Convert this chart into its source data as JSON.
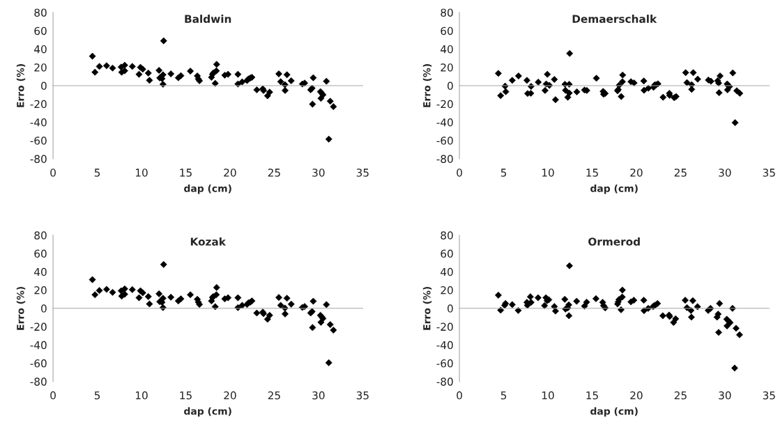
{
  "chart_data": [
    {
      "type": "scatter",
      "title": "Baldwin",
      "xlabel": "dap (cm)",
      "ylabel": "Erro (%)",
      "color": "#000000",
      "marker": "diamond",
      "xlim": [
        0,
        35
      ],
      "ylim": [
        -80,
        80
      ],
      "xticks": [
        0,
        5,
        10,
        15,
        20,
        25,
        30,
        35
      ],
      "yticks": [
        -80,
        -60,
        -40,
        -20,
        0,
        20,
        40,
        60,
        80
      ],
      "x": [
        4.45,
        4.74,
        5.24,
        6.05,
        6.73,
        7.7,
        7.76,
        8.1,
        8.1,
        8.96,
        9.72,
        9.88,
        10.14,
        10.77,
        10.9,
        11.98,
        12.06,
        12.32,
        12.43,
        12.43,
        12.5,
        13.32,
        14.16,
        14.45,
        15.52,
        16.31,
        16.42,
        16.55,
        17.91,
        18.02,
        18.12,
        18.46,
        18.49,
        18.33,
        19.41,
        19.78,
        20.9,
        20.9,
        21.38,
        21.93,
        22.09,
        22.3,
        22.48,
        23.03,
        23.71,
        23.79,
        24.24,
        24.48,
        25.52,
        25.73,
        26.21,
        26.23,
        26.44,
        26.92,
        28.18,
        28.44,
        29.12,
        29.28,
        29.33,
        29.41,
        30.22,
        30.38,
        30.51,
        30.28,
        30.9,
        31.17,
        31.33,
        31.69
      ],
      "values": [
        32.2,
        14.7,
        21.0,
        21.8,
        19.2,
        20.3,
        14.7,
        22.3,
        16.2,
        21.0,
        12.4,
        20.0,
        18.0,
        13.7,
        5.8,
        16.7,
        8.4,
        7.6,
        11.9,
        1.5,
        49,
        12.9,
        8.6,
        10.9,
        15.9,
        10.6,
        7.3,
        5.3,
        9.1,
        12.4,
        13.9,
        16.2,
        23.3,
        2.5,
        11.4,
        12.4,
        12.4,
        1.8,
        4.1,
        5.6,
        7.3,
        8.4,
        9.1,
        -4.6,
        -3.5,
        -5.3,
        -11.1,
        -7.1,
        12.9,
        4.3,
        1.0,
        -5.3,
        11.9,
        5.3,
        1.8,
        2.8,
        -4.6,
        -2.8,
        -20.3,
        8.6,
        -6.6,
        -8.4,
        -10.1,
        -13.9,
        4.8,
        -58.5,
        -17.0,
        -23.0
      ]
    },
    {
      "type": "scatter",
      "title": "Demaerschalk",
      "xlabel": "dap (cm)",
      "ylabel": "Erro (%)",
      "color": "#000000",
      "marker": "diamond",
      "xlim": [
        0,
        35
      ],
      "ylim": [
        -80,
        80
      ],
      "xticks": [
        0,
        5,
        10,
        15,
        20,
        25,
        30,
        35
      ],
      "yticks": [
        -80,
        -60,
        -40,
        -20,
        0,
        20,
        40,
        60,
        80
      ],
      "x": [
        4.4,
        4.66,
        5.16,
        5.24,
        5.97,
        6.68,
        7.63,
        7.71,
        8.07,
        8.1,
        8.91,
        9.68,
        9.81,
        9.94,
        10.17,
        10.73,
        10.86,
        11.93,
        11.99,
        12.25,
        12.41,
        12.41,
        12.46,
        13.27,
        14.14,
        14.4,
        15.48,
        16.24,
        16.29,
        16.48,
        17.87,
        17.95,
        18.05,
        18.29,
        18.42,
        18.45,
        19.39,
        19.74,
        20.84,
        20.87,
        21.36,
        21.94,
        22.07,
        22.23,
        22.44,
        23.02,
        23.73,
        23.76,
        24.28,
        24.49,
        25.57,
        25.72,
        26.25,
        26.25,
        26.43,
        26.93,
        28.14,
        28.43,
        29.19,
        29.3,
        29.35,
        29.46,
        30.27,
        30.37,
        30.3,
        30.53,
        30.9,
        31.16,
        31.35,
        31.69
      ],
      "values": [
        13.4,
        -10.9,
        -0.5,
        -6.6,
        5.8,
        10.6,
        5.8,
        -8.6,
        -8.4,
        -0.8,
        3.8,
        -5.3,
        1.8,
        12.4,
        0.3,
        6.8,
        -15.4,
        1.5,
        -5.1,
        -12.7,
        1.5,
        -8.1,
        35.2,
        -6.8,
        -4.8,
        -5.3,
        8.1,
        -6.3,
        -9.4,
        -8.6,
        -5.6,
        -4.3,
        0.3,
        -11.9,
        4.3,
        11.6,
        4.3,
        3.0,
        5.1,
        -5.1,
        -2.8,
        -1.8,
        0.8,
        1.0,
        2.0,
        -12.7,
        -8.4,
        -10.6,
        -13.2,
        -11.9,
        14.2,
        3.3,
        1.0,
        -4.1,
        14.2,
        7.1,
        6.1,
        4.8,
        5.3,
        2.8,
        -7.8,
        10.6,
        1.8,
        0.0,
        -4.6,
        -1.0,
        13.9,
        -40.5,
        -5.6,
        -8.4
      ]
    },
    {
      "type": "scatter",
      "title": "Kozak",
      "xlabel": "dap (cm)",
      "ylabel": "Erro (%)",
      "color": "#000000",
      "marker": "diamond",
      "xlim": [
        0,
        35
      ],
      "ylim": [
        -80,
        80
      ],
      "xticks": [
        0,
        5,
        10,
        15,
        20,
        25,
        30,
        35
      ],
      "yticks": [
        -80,
        -60,
        -40,
        -20,
        0,
        20,
        40,
        60,
        80
      ],
      "x": [
        4.45,
        4.74,
        5.24,
        6.05,
        6.73,
        7.7,
        7.76,
        8.1,
        8.1,
        8.96,
        9.72,
        9.88,
        10.14,
        10.77,
        10.9,
        11.98,
        12.06,
        12.32,
        12.43,
        12.43,
        12.5,
        13.32,
        14.16,
        14.45,
        15.52,
        16.31,
        16.42,
        16.55,
        17.91,
        18.02,
        18.12,
        18.46,
        18.49,
        18.33,
        19.41,
        19.78,
        20.9,
        20.9,
        21.38,
        21.93,
        22.09,
        22.3,
        22.48,
        23.03,
        23.71,
        23.79,
        24.24,
        24.48,
        25.52,
        25.73,
        26.21,
        26.23,
        26.44,
        26.92,
        28.18,
        28.44,
        29.12,
        29.28,
        29.33,
        29.41,
        30.22,
        30.38,
        30.51,
        30.28,
        30.9,
        31.17,
        31.33,
        31.69
      ],
      "values": [
        31.4,
        14.9,
        19.5,
        20.8,
        17.5,
        19.2,
        13.4,
        21.3,
        15.4,
        20.5,
        11.6,
        19.2,
        17.0,
        12.9,
        4.8,
        15.9,
        7.3,
        6.6,
        11.1,
        0.8,
        48,
        12.2,
        8.1,
        10.4,
        14.9,
        9.9,
        6.8,
        4.3,
        8.1,
        11.9,
        12.9,
        14.9,
        22.8,
        1.8,
        10.4,
        11.6,
        11.6,
        0.8,
        3.3,
        4.3,
        6.1,
        6.8,
        8.1,
        -5.1,
        -4.1,
        -5.8,
        -11.9,
        -7.6,
        11.9,
        3.3,
        0.3,
        -6.1,
        11.1,
        4.6,
        1.0,
        2.0,
        -5.1,
        -3.5,
        -21.0,
        7.8,
        -7.6,
        -9.4,
        -11.1,
        -15.2,
        4.1,
        -59.5,
        -17.7,
        -23.8
      ]
    },
    {
      "type": "scatter",
      "title": "Ormerod",
      "xlabel": "dap (cm)",
      "ylabel": "Erro (%)",
      "color": "#000000",
      "marker": "diamond",
      "xlim": [
        0,
        35
      ],
      "ylim": [
        -80,
        80
      ],
      "xticks": [
        0,
        5,
        10,
        15,
        20,
        25,
        30,
        35
      ],
      "yticks": [
        -80,
        -60,
        -40,
        -20,
        0,
        20,
        40,
        60,
        80
      ],
      "x": [
        4.4,
        4.66,
        5.11,
        5.21,
        5.97,
        6.65,
        7.63,
        7.68,
        8.02,
        8.1,
        8.89,
        9.62,
        9.78,
        9.91,
        10.1,
        10.73,
        10.86,
        11.91,
        11.99,
        12.25,
        12.36,
        12.38,
        12.44,
        13.25,
        14.14,
        14.38,
        15.43,
        16.19,
        16.29,
        16.48,
        17.87,
        17.95,
        18.03,
        18.27,
        18.4,
        18.42,
        19.39,
        19.71,
        20.84,
        20.87,
        21.34,
        21.89,
        22.0,
        22.1,
        22.39,
        22.99,
        23.7,
        23.76,
        24.2,
        24.44,
        25.52,
        25.72,
        26.17,
        26.22,
        26.38,
        26.91,
        28.12,
        28.38,
        29.12,
        29.24,
        29.3,
        29.4,
        30.22,
        30.25,
        30.46,
        30.59,
        30.87,
        31.11,
        31.27,
        31.66
      ],
      "values": [
        14.4,
        -2.0,
        3.3,
        5.3,
        4.1,
        -2.3,
        6.6,
        3.3,
        12.7,
        6.6,
        11.6,
        3.0,
        11.6,
        8.4,
        9.4,
        2.0,
        -3.0,
        9.9,
        -0.8,
        0.5,
        3.8,
        -8.1,
        46.6,
        7.8,
        2.5,
        6.8,
        10.6,
        6.6,
        3.0,
        0.5,
        4.8,
        7.1,
        9.6,
        -1.5,
        12.4,
        20.0,
        7.1,
        8.9,
        8.9,
        -2.5,
        0.0,
        2.0,
        2.8,
        3.3,
        5.3,
        -8.1,
        -7.3,
        -8.9,
        -15.4,
        -11.4,
        8.9,
        0.8,
        -2.3,
        -9.6,
        8.4,
        1.8,
        -2.3,
        0.0,
        -9.6,
        -6.3,
        -26.3,
        5.3,
        -11.9,
        -19.2,
        -14.2,
        -15.7,
        0.0,
        -65.3,
        -21.8,
        -28.9
      ]
    }
  ]
}
